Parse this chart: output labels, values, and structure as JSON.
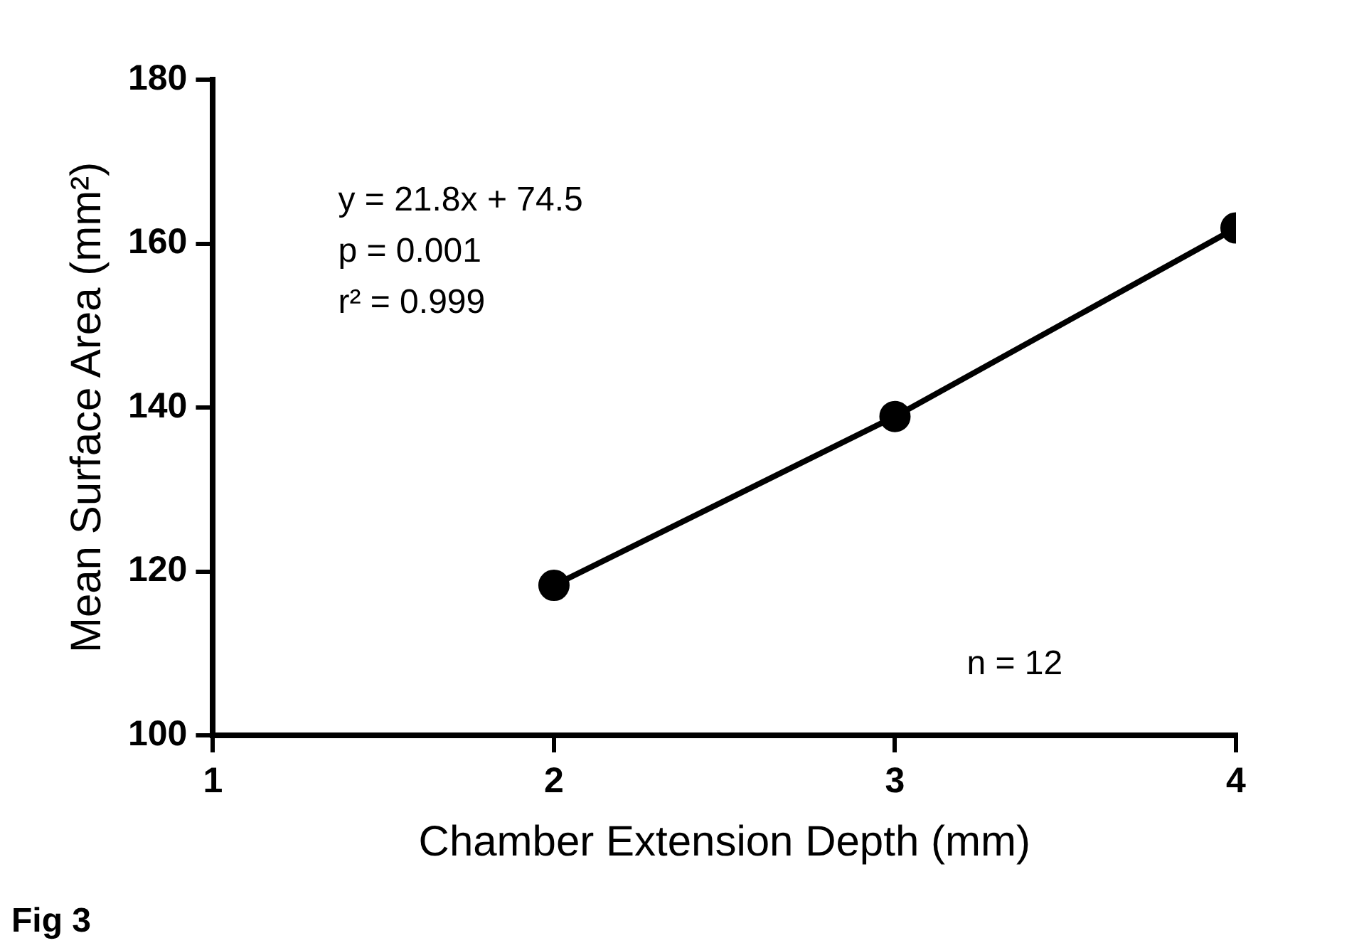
{
  "chart_data": {
    "type": "line",
    "xlabel": "Chamber Extension Depth (mm)",
    "ylabel": "Mean Surface Area (mm²)",
    "x": [
      2,
      3,
      4
    ],
    "series": [
      {
        "color": "#000000",
        "values": [
          118.3,
          138.9,
          161.9
        ]
      }
    ],
    "xlim": [
      1,
      4
    ],
    "xticks": [
      1,
      2,
      3,
      4
    ],
    "ylim": [
      100,
      180
    ],
    "yticks": [
      100,
      120,
      140,
      160,
      180
    ],
    "marker": "circle",
    "line_style": "solid",
    "annotations": [
      "y = 21.8x + 74.5",
      "p = 0.001",
      "r² = 0.999",
      "n = 12",
      "Fig 3"
    ]
  }
}
